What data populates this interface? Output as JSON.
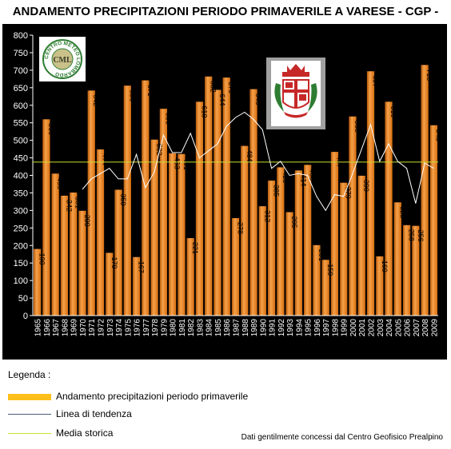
{
  "title": "ANDAMENTO PRECIPITAZIONI PERIODO PRIMAVERILE A VARESE - CGP -",
  "chart_data": {
    "type": "bar",
    "categories": [
      "1965",
      "1966",
      "1967",
      "1968",
      "1969",
      "1970",
      "1971",
      "1972",
      "1973",
      "1974",
      "1975",
      "1976",
      "1977",
      "1978",
      "1979",
      "1980",
      "1981",
      "1982",
      "1983",
      "1984",
      "1985",
      "1986",
      "1987",
      "1988",
      "1989",
      "1990",
      "1991",
      "1992",
      "1993",
      "1994",
      "1995",
      "1996",
      "1997",
      "1998",
      "1999",
      "2000",
      "2001",
      "2002",
      "2003",
      "2004",
      "2005",
      "2006",
      "2007",
      "2008",
      "2009"
    ],
    "series": [
      {
        "name": "Andamento precipitazioni periodo primaverile",
        "values": [
          190,
          560,
          405,
          342,
          351,
          299,
          642,
          474,
          179,
          359,
          656,
          167,
          671,
          502,
          590,
          463,
          461,
          221,
          610,
          682,
          644,
          679,
          278,
          484,
          646,
          312,
          385,
          423,
          295,
          414,
          430,
          201,
          159,
          467,
          379,
          568,
          399,
          697,
          169,
          610,
          323,
          258,
          256,
          715,
          543
        ],
        "color": "#f28c1e"
      },
      {
        "name": "Linea di tendenza",
        "values": [
          null,
          null,
          null,
          null,
          null,
          360,
          390,
          405,
          420,
          390,
          390,
          460,
          365,
          410,
          515,
          465,
          465,
          520,
          450,
          470,
          490,
          540,
          565,
          580,
          560,
          530,
          420,
          440,
          400,
          405,
          400,
          340,
          300,
          345,
          340,
          405,
          475,
          545,
          440,
          490,
          440,
          420,
          320,
          435,
          420
        ],
        "color": "#ffffff"
      },
      {
        "name": "Media storica",
        "value": 438,
        "color": "#c8e032"
      }
    ],
    "ylim": [
      0,
      800
    ],
    "yticks": [
      0,
      50,
      100,
      150,
      200,
      250,
      300,
      350,
      400,
      450,
      500,
      550,
      600,
      650,
      700,
      750,
      800
    ],
    "grid": false
  },
  "legend": {
    "title": "Legenda :",
    "items": [
      {
        "label": "Andamento precipitazioni periodo primaverile",
        "color": "#ffbf1a"
      },
      {
        "label": "Linea di tendenza",
        "color": "#4a5a80"
      },
      {
        "label": "Media storica",
        "color": "#c8e032"
      }
    ]
  },
  "credits": "Dati gentilmente concessi dal Centro Geofisico Prealpino",
  "logo": {
    "ring_text": "CENTRO METEO LOMBARDO",
    "center_text": "CML"
  }
}
